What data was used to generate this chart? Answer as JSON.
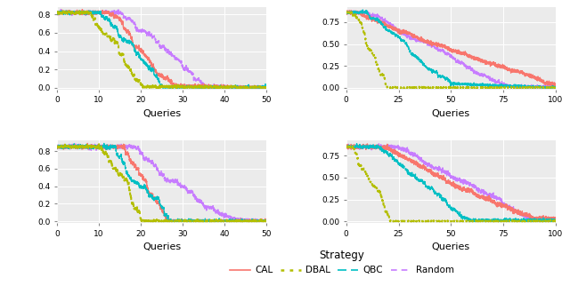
{
  "colors": {
    "CAL": "#F8766D",
    "DBAL": "#B3BE00",
    "QBC": "#00BFC4",
    "Random": "#C77CFF"
  },
  "background_color": "#EBEBEB",
  "grid_color": "white",
  "panels": [
    {
      "xlim": [
        0,
        50
      ],
      "xticks": [
        0,
        10,
        20,
        30,
        40,
        50
      ],
      "ylim": [
        -0.02,
        0.88
      ],
      "yticks": [
        0.0,
        0.2,
        0.4,
        0.6,
        0.8
      ]
    },
    {
      "xlim": [
        0,
        100
      ],
      "xticks": [
        0,
        25,
        50,
        75,
        100
      ],
      "ylim": [
        -0.02,
        0.92
      ],
      "yticks": [
        0.0,
        0.25,
        0.5,
        0.75
      ]
    },
    {
      "xlim": [
        0,
        50
      ],
      "xticks": [
        0,
        10,
        20,
        30,
        40,
        50
      ],
      "ylim": [
        -0.02,
        0.92
      ],
      "yticks": [
        0.0,
        0.2,
        0.4,
        0.6,
        0.8
      ]
    },
    {
      "xlim": [
        0,
        100
      ],
      "xticks": [
        0,
        25,
        50,
        75,
        100
      ],
      "ylim": [
        -0.02,
        0.92
      ],
      "yticks": [
        0.0,
        0.25,
        0.5,
        0.75
      ]
    }
  ],
  "xlabel": "Queries",
  "legend_title": "Strategy",
  "strategies": [
    "DBAL",
    "QBC",
    "CAL",
    "Random"
  ]
}
